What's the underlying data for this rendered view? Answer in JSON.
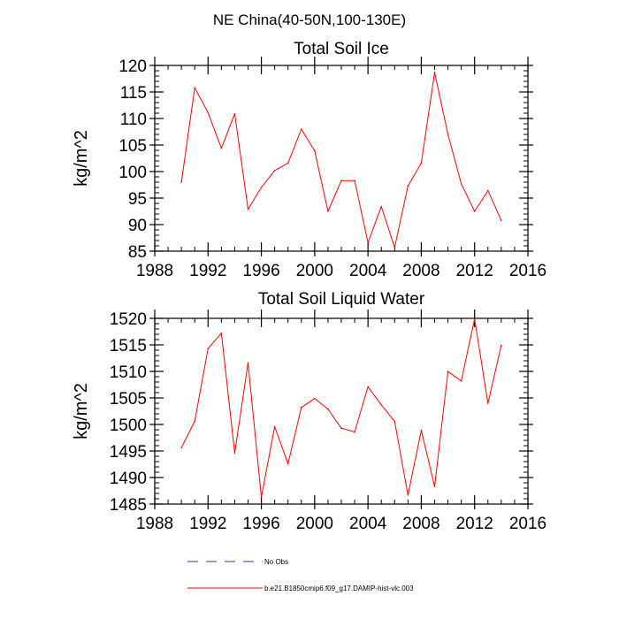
{
  "figure": {
    "suptitle": "NE China(40-50N,100-130E)"
  },
  "chart_data": [
    {
      "type": "line",
      "title": "Total Soil Ice",
      "xlabel": "",
      "ylabel": "kg/m^2",
      "xlim": [
        1988,
        2016
      ],
      "ylim": [
        85,
        120
      ],
      "xticks": [
        1988,
        1992,
        1996,
        2000,
        2004,
        2008,
        2012,
        2016
      ],
      "yticks": [
        85,
        90,
        95,
        100,
        105,
        110,
        115,
        120
      ],
      "series": [
        {
          "color": "#ff0000",
          "x": [
            1990,
            1991,
            1992,
            1993,
            1994,
            1995,
            1996,
            1997,
            1998,
            1999,
            2000,
            2001,
            2002,
            2003,
            2004,
            2005,
            2006,
            2007,
            2008,
            2009,
            2010,
            2011,
            2012,
            2013,
            2014
          ],
          "y": [
            98.0,
            115.8,
            111.1,
            104.4,
            110.9,
            92.9,
            97.0,
            100.2,
            101.6,
            108.0,
            103.9,
            92.5,
            98.3,
            98.3,
            86.6,
            93.4,
            85.7,
            97.3,
            101.6,
            118.7,
            107.0,
            97.7,
            92.5,
            96.4,
            90.8
          ]
        }
      ]
    },
    {
      "type": "line",
      "title": "Total Soil Liquid Water",
      "xlabel": "",
      "ylabel": "kg/m^2",
      "xlim": [
        1988,
        2016
      ],
      "ylim": [
        1485,
        1520
      ],
      "xticks": [
        1988,
        1992,
        1996,
        2000,
        2004,
        2008,
        2012,
        2016
      ],
      "yticks": [
        1485,
        1490,
        1495,
        1500,
        1505,
        1510,
        1515,
        1520
      ],
      "series": [
        {
          "color": "#ff0000",
          "x": [
            1990,
            1991,
            1992,
            1993,
            1994,
            1995,
            1996,
            1997,
            1998,
            1999,
            2000,
            2001,
            2002,
            2003,
            2004,
            2005,
            2006,
            2007,
            2008,
            2009,
            2010,
            2011,
            2012,
            2013,
            2014
          ],
          "y": [
            1495.6,
            1500.6,
            1514.3,
            1517.2,
            1494.6,
            1511.6,
            1486.3,
            1499.6,
            1492.6,
            1503.2,
            1504.9,
            1502.9,
            1499.3,
            1498.6,
            1507.1,
            1503.7,
            1500.6,
            1486.7,
            1498.9,
            1488.3,
            1510.0,
            1508.2,
            1519.9,
            1504.0,
            1514.9
          ]
        }
      ]
    }
  ],
  "legend": {
    "placement": "bottom",
    "items": [
      {
        "label": "No Obs",
        "color": "#3333aa",
        "style": "dashed"
      },
      {
        "label": "b.e21.B1850cmip6.f09_g17.DAMIP-hist-vlc.003",
        "color": "#ff0000",
        "style": "solid"
      }
    ]
  }
}
